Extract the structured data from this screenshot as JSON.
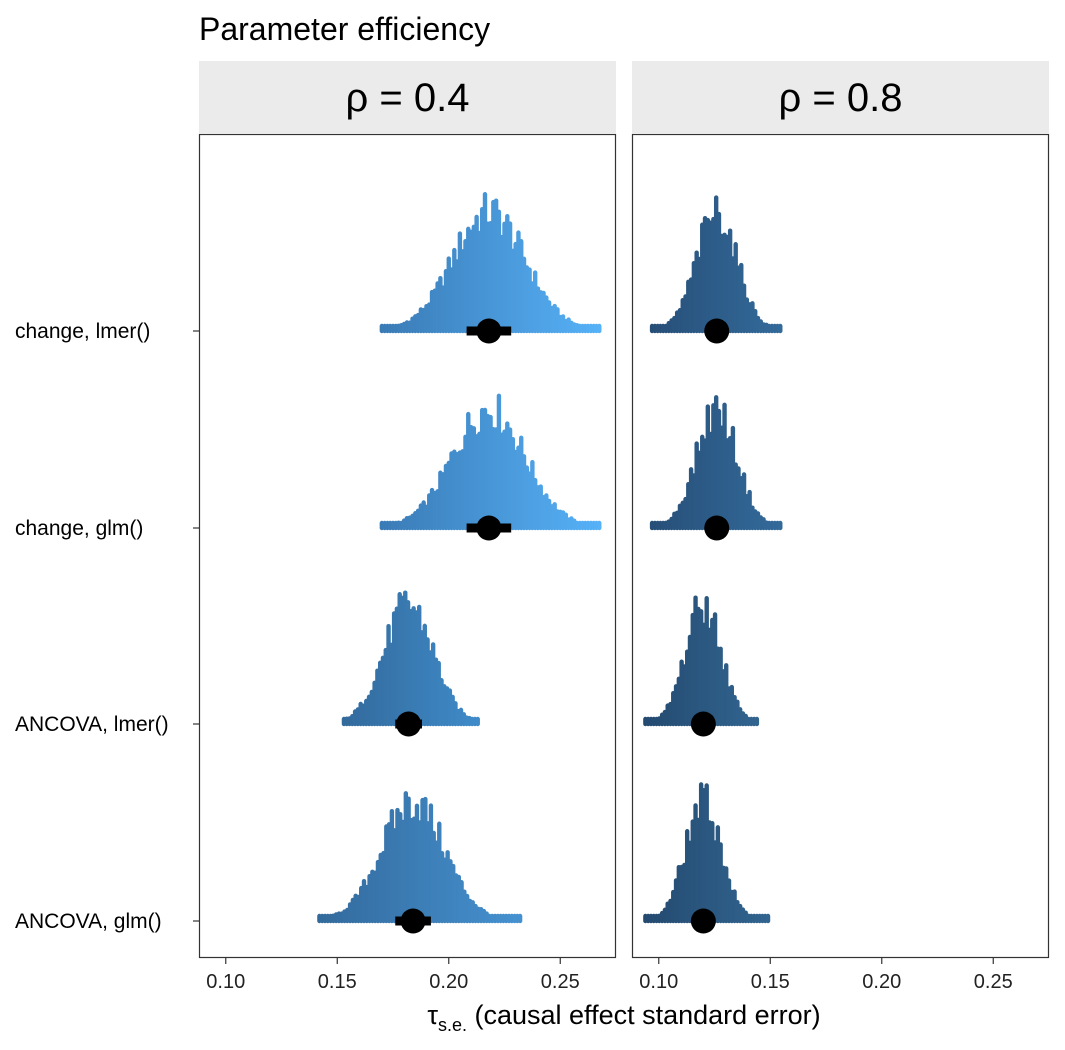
{
  "chart_data": {
    "type": "dotplot-interval",
    "title": "Parameter efficiency",
    "xlabel_symbol": "τ",
    "xlabel_subscript": "s.e.",
    "xlabel_text": " (causal effect standard error)",
    "xlim": [
      0.088,
      0.275
    ],
    "x_ticks": [
      0.1,
      0.15,
      0.2,
      0.25
    ],
    "x_tick_labels": [
      "0.10",
      "0.15",
      "0.20",
      "0.25"
    ],
    "grid": false,
    "models": [
      "change, lmer()",
      "change, glm()",
      "ANCOVA, lmer()",
      "ANCOVA, glm()"
    ],
    "panels": [
      {
        "label": "ρ = 0.4",
        "rho": 0.4,
        "series": [
          {
            "model": "change, lmer()",
            "point": 0.218,
            "interval": [
              0.208,
              0.228
            ],
            "min": 0.17,
            "max": 0.268,
            "sd": 0.016,
            "color_low": "#3a7bb6",
            "color_high": "#56b1f7"
          },
          {
            "model": "change, glm()",
            "point": 0.218,
            "interval": [
              0.208,
              0.228
            ],
            "min": 0.17,
            "max": 0.268,
            "sd": 0.016,
            "color_low": "#3a7bb6",
            "color_high": "#56b1f7"
          },
          {
            "model": "ANCOVA, lmer()",
            "point": 0.182,
            "interval": [
              0.176,
              0.188
            ],
            "min": 0.153,
            "max": 0.214,
            "sd": 0.011,
            "color_low": "#336a9c",
            "color_high": "#3f8bc9"
          },
          {
            "model": "ANCOVA, glm()",
            "point": 0.184,
            "interval": [
              0.176,
              0.192
            ],
            "min": 0.142,
            "max": 0.232,
            "sd": 0.014,
            "color_low": "#336a9c",
            "color_high": "#4591d0"
          }
        ]
      },
      {
        "label": "ρ = 0.8",
        "rho": 0.8,
        "series": [
          {
            "model": "change, lmer()",
            "point": 0.126,
            "interval": [
              0.123,
              0.129
            ],
            "min": 0.097,
            "max": 0.155,
            "sd": 0.009,
            "color_low": "#274f78",
            "color_high": "#336a9a"
          },
          {
            "model": "change, glm()",
            "point": 0.126,
            "interval": [
              0.123,
              0.129
            ],
            "min": 0.097,
            "max": 0.155,
            "sd": 0.009,
            "color_low": "#274f78",
            "color_high": "#336a9a"
          },
          {
            "model": "ANCOVA, lmer()",
            "point": 0.12,
            "interval": [
              0.117,
              0.123
            ],
            "min": 0.094,
            "max": 0.144,
            "sd": 0.008,
            "color_low": "#244a70",
            "color_high": "#31648f"
          },
          {
            "model": "ANCOVA, glm()",
            "point": 0.12,
            "interval": [
              0.117,
              0.123
            ],
            "min": 0.094,
            "max": 0.149,
            "sd": 0.008,
            "color_low": "#244a70",
            "color_high": "#31648f"
          }
        ]
      }
    ]
  }
}
